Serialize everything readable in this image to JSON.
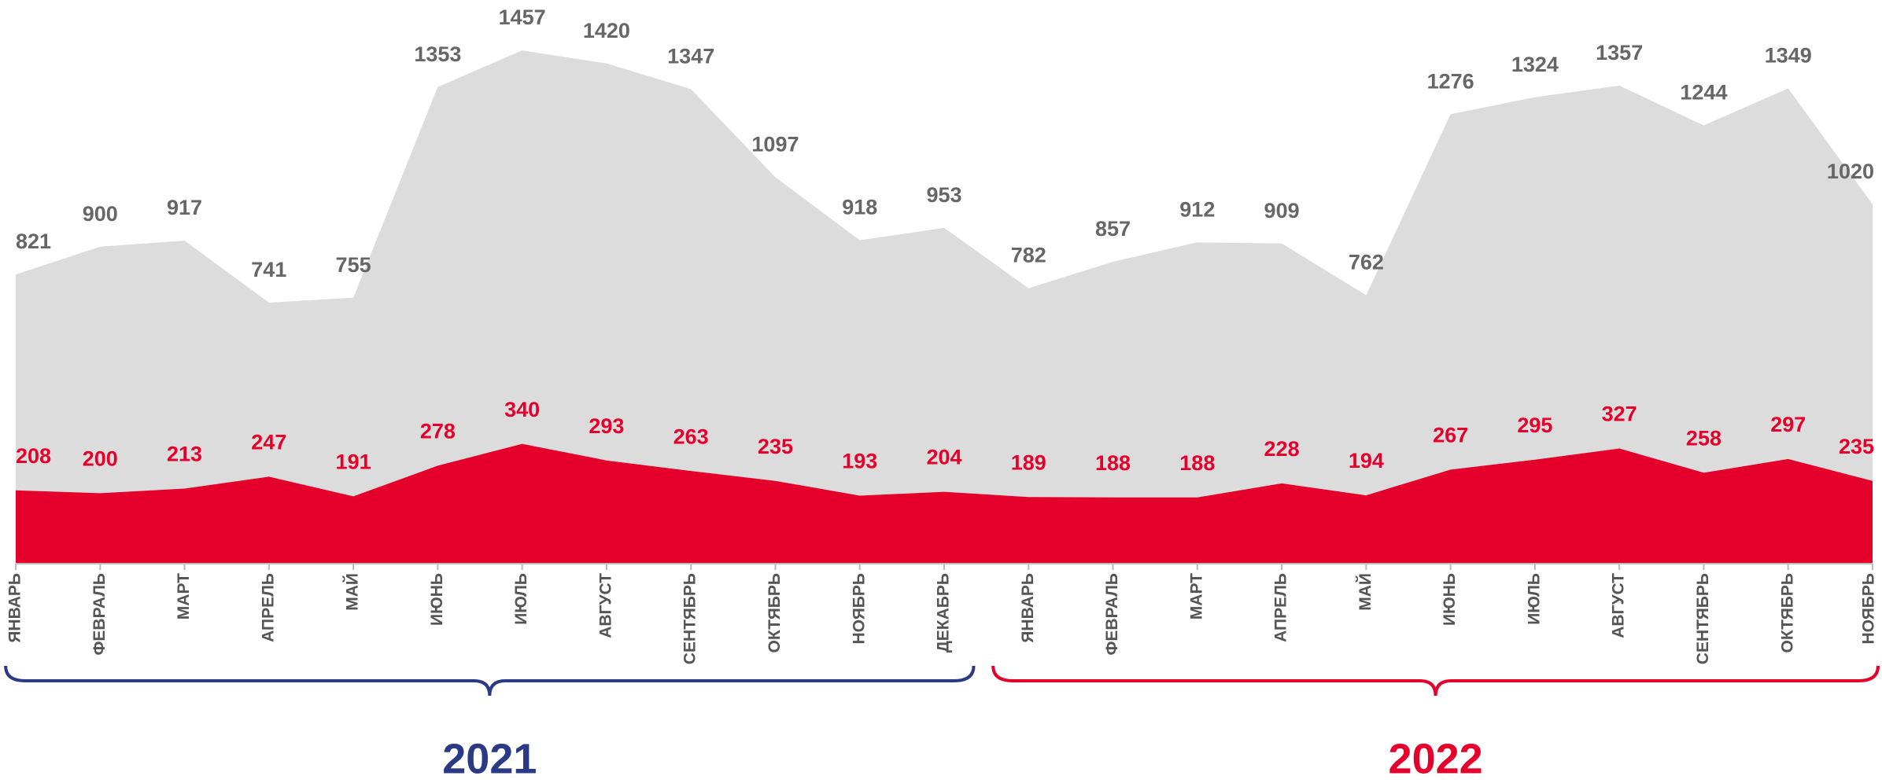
{
  "chart_data": {
    "type": "area",
    "categories": [
      "ЯНВАРЬ",
      "ФЕВРАЛЬ",
      "МАРТ",
      "АПРЕЛЬ",
      "МАЙ",
      "ИЮНЬ",
      "ИЮЛЬ",
      "АВГУСТ",
      "СЕНТЯБРЬ",
      "ОКТЯБРЬ",
      "НОЯБРЬ",
      "ДЕКАБРЬ",
      "ЯНВАРЬ",
      "ФЕВРАЛЬ",
      "МАРТ",
      "АПРЕЛЬ",
      "МАЙ",
      "ИЮНЬ",
      "ИЮЛЬ",
      "АВГУСТ",
      "СЕНТЯБРЬ",
      "ОКТЯБРЬ",
      "НОЯБРЬ"
    ],
    "series": [
      {
        "color": "#dcdcdc",
        "label_color": "#666666",
        "values": [
          821,
          900,
          917,
          741,
          755,
          1353,
          1457,
          1420,
          1347,
          1097,
          918,
          953,
          782,
          857,
          912,
          909,
          762,
          1276,
          1324,
          1357,
          1244,
          1349,
          1020
        ]
      },
      {
        "color": "#e4002b",
        "label_color": "#e4002b",
        "values": [
          208,
          200,
          213,
          247,
          191,
          278,
          340,
          293,
          263,
          235,
          193,
          204,
          189,
          188,
          188,
          228,
          194,
          267,
          295,
          327,
          258,
          297,
          235
        ]
      }
    ],
    "ylim": [
      0,
      1600
    ],
    "groups": [
      {
        "label": "2021",
        "count": 12,
        "color": "#2b3a85"
      },
      {
        "label": "2022",
        "count": 11,
        "color": "#e4002b"
      }
    ]
  }
}
